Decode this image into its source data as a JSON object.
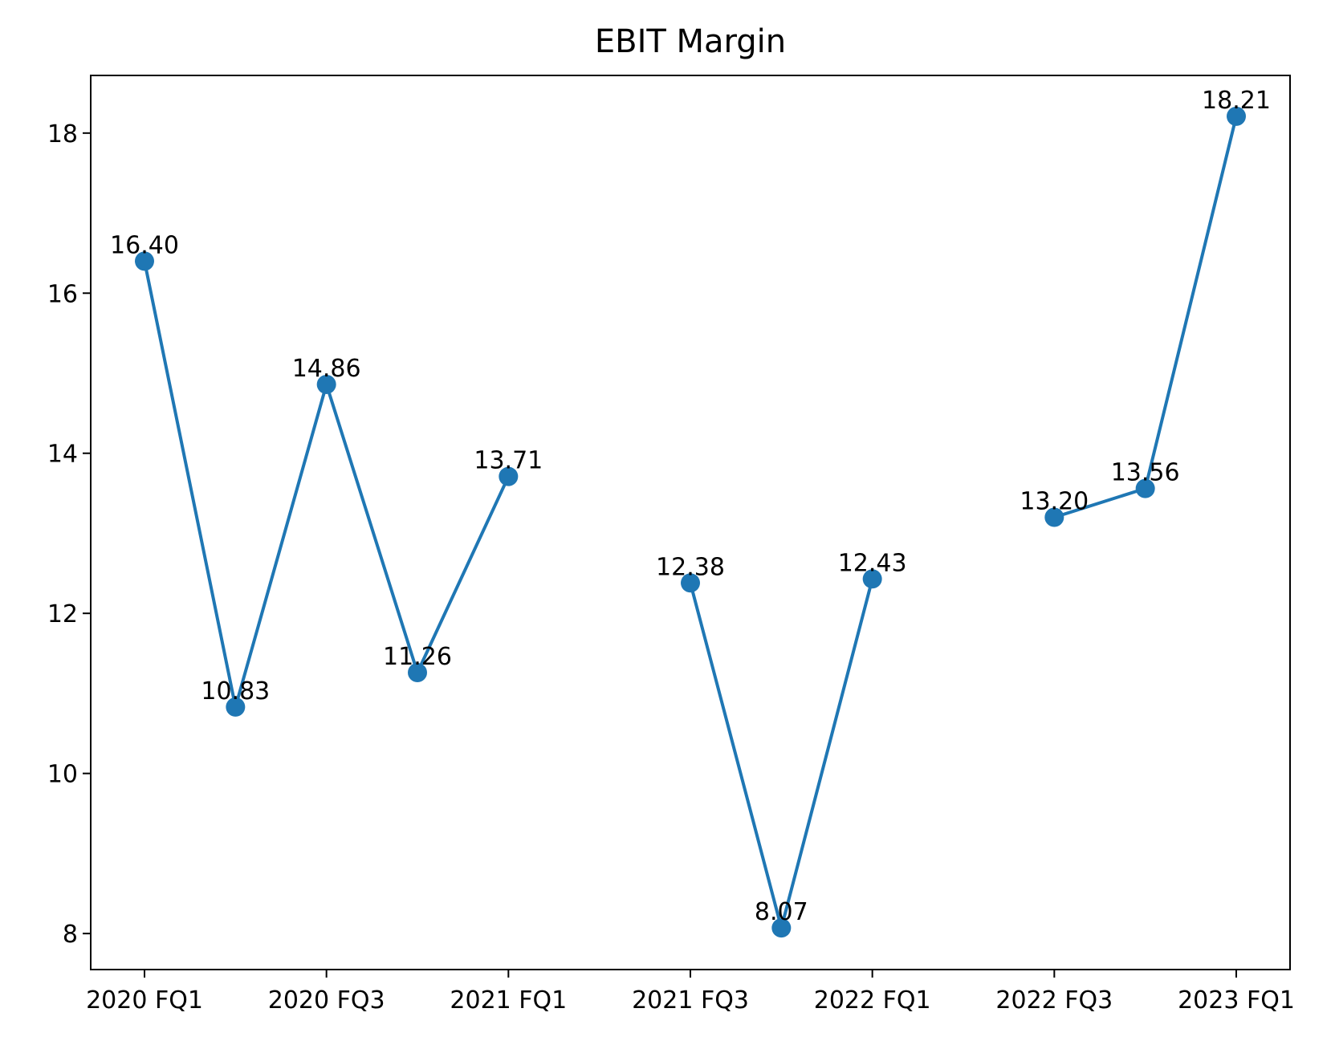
{
  "chart_data": {
    "type": "line",
    "title": "EBIT Margin",
    "xlabel": "",
    "ylabel": "",
    "x_tick_labels": [
      "2020 FQ1",
      "2020 FQ3",
      "2021 FQ1",
      "2021 FQ3",
      "2022 FQ1",
      "2022 FQ3",
      "2023 FQ1"
    ],
    "y_ticks": [
      8,
      10,
      12,
      14,
      16,
      18
    ],
    "ylim": [
      7.55,
      18.72
    ],
    "grid": false,
    "color": "#1f77b4",
    "points": [
      {
        "x": "2020 FQ1",
        "y": 16.4,
        "label": "16.40"
      },
      {
        "x": "2020 FQ2",
        "y": 10.83,
        "label": "10.83"
      },
      {
        "x": "2020 FQ3",
        "y": 14.86,
        "label": "14.86"
      },
      {
        "x": "2020 FQ4",
        "y": 11.26,
        "label": "11.26"
      },
      {
        "x": "2021 FQ1",
        "y": 13.71,
        "label": "13.71"
      },
      {
        "x": "2021 FQ2",
        "y": null,
        "label": null
      },
      {
        "x": "2021 FQ3",
        "y": 12.38,
        "label": "12.38"
      },
      {
        "x": "2021 FQ4",
        "y": 8.07,
        "label": "8.07"
      },
      {
        "x": "2022 FQ1",
        "y": 12.43,
        "label": "12.43"
      },
      {
        "x": "2022 FQ2",
        "y": null,
        "label": null
      },
      {
        "x": "2022 FQ3",
        "y": 13.2,
        "label": "13.20"
      },
      {
        "x": "2022 FQ4",
        "y": 13.56,
        "label": "13.56"
      },
      {
        "x": "2023 FQ1",
        "y": 18.21,
        "label": "18.21"
      }
    ]
  }
}
